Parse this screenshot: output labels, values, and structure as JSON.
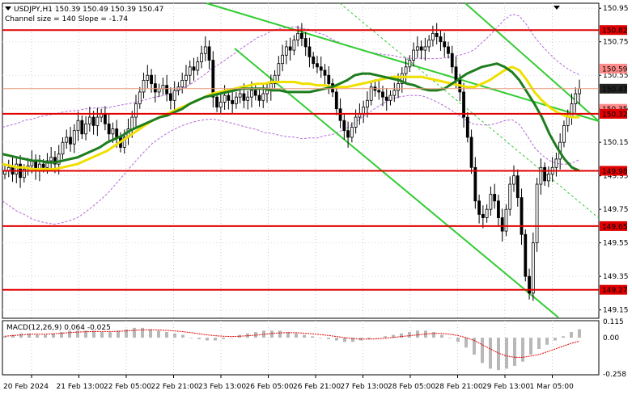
{
  "header": {
    "symbol_line": "USDJPY,H1  150.39 150.49 150.39 150.47",
    "channel_line": "Channel size = 140 Slope = -1.74"
  },
  "macd": {
    "label": "MACD(12,26,9) 0.064 -0.025",
    "ticks": [
      "0.115",
      "0.00",
      "-0.258"
    ],
    "tick_values": [
      0.115,
      0.0,
      -0.258
    ]
  },
  "colors": {
    "level_line": "#e00000",
    "channel": "#33cc33",
    "ma_fast": "#1e7d1e",
    "ma_slow": "#f0e000",
    "bollinger": "#b36bd9",
    "candles": "#000000",
    "macd_hist": "#b8b8b8",
    "macd_signal": "#e00000",
    "badge_red": "#e00000",
    "badge_dark": "#222222"
  },
  "chart_data": {
    "type": "candlestick",
    "symbol": "USDJPY",
    "timeframe": "H1",
    "ohlc_last": {
      "open": 150.39,
      "high": 150.49,
      "low": 150.39,
      "close": 150.47
    },
    "ylim": [
      149.1,
      150.98
    ],
    "y_ticks": [
      "150.95",
      "150.75",
      "150.55",
      "150.35",
      "150.15",
      "149.95",
      "149.75",
      "149.55",
      "149.35",
      "149.15"
    ],
    "y_tick_values": [
      150.95,
      150.75,
      150.55,
      150.35,
      150.15,
      149.95,
      149.75,
      149.55,
      149.35,
      149.15
    ],
    "x_labels": [
      "20 Feb 2024",
      "21 Feb 13:00",
      "22 Feb 05:00",
      "22 Feb 21:00",
      "23 Feb 13:00",
      "26 Feb 05:00",
      "26 Feb 21:00",
      "27 Feb 13:00",
      "28 Feb 05:00",
      "28 Feb 21:00",
      "29 Feb 13:00",
      "1 Mar 05:00"
    ],
    "levels": [
      150.82,
      150.32,
      149.98,
      149.65,
      149.27
    ],
    "level_labels": [
      "150.82",
      "150.32",
      "149.98",
      "149.65",
      "149.27"
    ],
    "current_price": "150.47",
    "current_price_value": 150.47,
    "hidden_tags": [
      "150.59",
      "150.35"
    ],
    "hidden_tag_values": [
      150.59,
      150.35
    ],
    "close_series": [
      149.98,
      150.0,
      149.96,
      150.02,
      149.94,
      149.99,
      150.01,
      150.04,
      149.98,
      150.02,
      150.0,
      150.04,
      150.06,
      150.02,
      150.08,
      150.15,
      150.18,
      150.14,
      150.22,
      150.28,
      150.2,
      150.26,
      150.3,
      150.25,
      150.3,
      150.32,
      150.26,
      150.2,
      150.23,
      150.18,
      150.12,
      150.18,
      150.23,
      150.3,
      150.38,
      150.45,
      150.52,
      150.55,
      150.5,
      150.45,
      150.47,
      150.49,
      150.44,
      150.4,
      150.46,
      150.48,
      150.52,
      150.55,
      150.6,
      150.58,
      150.63,
      150.68,
      150.72,
      150.64,
      150.42,
      150.36,
      150.39,
      150.43,
      150.4,
      150.38,
      150.42,
      150.44,
      150.4,
      150.42,
      150.46,
      150.43,
      150.4,
      150.44,
      150.46,
      150.5,
      150.55,
      150.62,
      150.67,
      150.72,
      150.7,
      150.76,
      150.8,
      150.77,
      150.72,
      150.66,
      150.62,
      150.6,
      150.58,
      150.55,
      150.5,
      150.45,
      150.35,
      150.28,
      150.22,
      150.18,
      150.24,
      150.3,
      150.32,
      150.36,
      150.4,
      150.48,
      150.46,
      150.45,
      150.42,
      150.4,
      150.43,
      150.46,
      150.5,
      150.56,
      150.6,
      150.64,
      150.7,
      150.72,
      150.7,
      150.72,
      150.76,
      150.8,
      150.78,
      150.75,
      150.72,
      150.68,
      150.6,
      150.52,
      150.45,
      150.3,
      150.18,
      150.0,
      149.8,
      149.72,
      149.7,
      149.75,
      149.84,
      149.8,
      149.7,
      149.62,
      149.75,
      149.9,
      149.95,
      149.82,
      149.6,
      149.35,
      149.25,
      149.55,
      149.9,
      150.0,
      149.92,
      149.96,
      150.0,
      150.05,
      150.15,
      150.25,
      150.3,
      150.38,
      150.44,
      150.47
    ],
    "ma_fast_series": [
      150.08,
      150.07,
      150.06,
      150.05,
      150.04,
      150.04,
      150.03,
      150.03,
      150.04,
      150.05,
      150.06,
      150.08,
      150.1,
      150.12,
      150.15,
      150.17,
      150.19,
      150.22,
      150.24,
      150.26,
      150.28,
      150.3,
      150.31,
      150.33,
      150.35,
      150.38,
      150.4,
      150.42,
      150.43,
      150.44,
      150.45,
      150.46,
      150.47,
      150.47,
      150.47,
      150.47,
      150.46,
      150.46,
      150.45,
      150.45,
      150.45,
      150.45,
      150.46,
      150.47,
      150.48,
      150.5,
      150.52,
      150.55,
      150.56,
      150.56,
      150.55,
      150.54,
      150.53,
      150.52,
      150.5,
      150.49,
      150.47,
      150.46,
      150.46,
      150.47,
      150.5,
      150.53,
      150.56,
      150.58,
      150.6,
      150.61,
      150.62,
      150.6,
      150.57,
      150.52,
      150.45,
      150.38,
      150.3,
      150.2,
      150.12,
      150.05,
      150.0,
      149.98
    ],
    "ma_slow_series": [
      150.02,
      150.01,
      150.0,
      150.0,
      149.99,
      149.99,
      149.99,
      149.99,
      150.0,
      150.01,
      150.02,
      150.04,
      150.06,
      150.08,
      150.1,
      150.13,
      150.16,
      150.19,
      150.22,
      150.25,
      150.28,
      150.3,
      150.32,
      150.34,
      150.36,
      150.38,
      150.4,
      150.42,
      150.44,
      150.45,
      150.46,
      150.47,
      150.48,
      150.49,
      150.5,
      150.5,
      150.51,
      150.51,
      150.51,
      150.51,
      150.5,
      150.5,
      150.49,
      150.49,
      150.48,
      150.48,
      150.48,
      150.49,
      150.5,
      150.51,
      150.52,
      150.53,
      150.54,
      150.54,
      150.54,
      150.54,
      150.54,
      150.53,
      150.52,
      150.51,
      150.5,
      150.49,
      150.48,
      150.48,
      150.5,
      150.52,
      150.55,
      150.58,
      150.6,
      150.58,
      150.52,
      150.45,
      150.4,
      150.36,
      150.33,
      150.31,
      150.3,
      150.3
    ],
    "macd_hist": [
      0.01,
      0.02,
      0.03,
      0.03,
      0.02,
      0.02,
      0.03,
      0.04,
      0.05,
      0.05,
      0.05,
      0.05,
      0.04,
      0.04,
      0.05,
      0.06,
      0.07,
      0.07,
      0.06,
      0.05,
      0.04,
      0.03,
      0.02,
      0.0,
      -0.01,
      -0.02,
      -0.02,
      -0.01,
      0.0,
      0.02,
      0.03,
      0.04,
      0.05,
      0.05,
      0.05,
      0.04,
      0.03,
      0.02,
      0.01,
      0.0,
      -0.01,
      -0.02,
      -0.03,
      -0.03,
      -0.02,
      -0.01,
      0.0,
      0.01,
      0.02,
      0.03,
      0.04,
      0.05,
      0.05,
      0.04,
      0.02,
      0.0,
      -0.03,
      -0.07,
      -0.12,
      -0.18,
      -0.22,
      -0.23,
      -0.22,
      -0.2,
      -0.17,
      -0.12,
      -0.08,
      -0.05,
      -0.02,
      0.01,
      0.04,
      0.06
    ],
    "macd_signal": [
      0.01,
      0.015,
      0.02,
      0.025,
      0.025,
      0.025,
      0.028,
      0.032,
      0.036,
      0.04,
      0.042,
      0.044,
      0.044,
      0.044,
      0.045,
      0.048,
      0.052,
      0.055,
      0.056,
      0.055,
      0.052,
      0.048,
      0.043,
      0.036,
      0.028,
      0.02,
      0.014,
      0.01,
      0.008,
      0.01,
      0.014,
      0.018,
      0.024,
      0.03,
      0.034,
      0.036,
      0.035,
      0.032,
      0.028,
      0.022,
      0.016,
      0.008,
      0.0,
      -0.006,
      -0.01,
      -0.01,
      -0.008,
      -0.004,
      0.002,
      0.008,
      0.014,
      0.02,
      0.026,
      0.03,
      0.03,
      0.025,
      0.015,
      0.0,
      -0.02,
      -0.05,
      -0.08,
      -0.11,
      -0.13,
      -0.14,
      -0.14,
      -0.13,
      -0.12,
      -0.1,
      -0.08,
      -0.06,
      -0.04,
      -0.025
    ]
  }
}
